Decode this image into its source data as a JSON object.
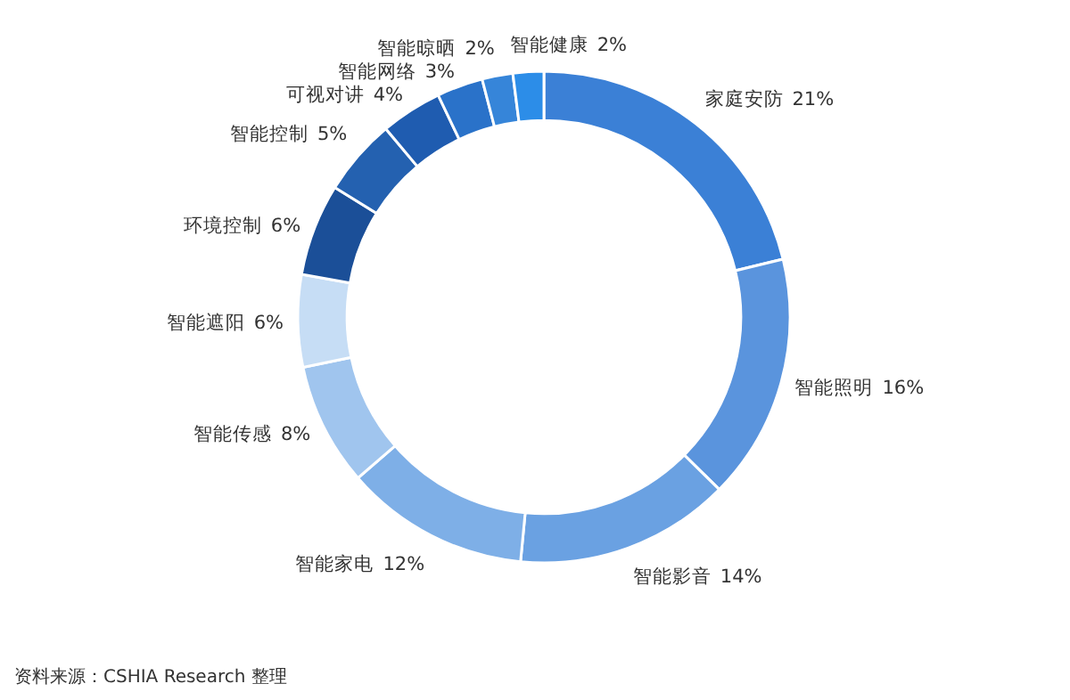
{
  "chart_data": {
    "type": "donut",
    "categories": [
      "家庭安防",
      "智能照明",
      "智能影音",
      "智能家电",
      "智能传感",
      "智能遮阳",
      "环境控制",
      "智能控制",
      "可视对讲",
      "智能网络",
      "智能晾晒",
      "智能健康"
    ],
    "values": [
      21,
      16,
      14,
      12,
      8,
      6,
      6,
      5,
      4,
      3,
      2,
      2
    ],
    "colors": [
      "#3b80d6",
      "#5a94dd",
      "#6aa1e2",
      "#7eafe7",
      "#a0c5ee",
      "#c6ddf5",
      "#1b4f98",
      "#2461b0",
      "#1f5cb0",
      "#2a72c9",
      "#3685d9",
      "#2c8de8"
    ],
    "value_labels": [
      "21%",
      "16%",
      "14%",
      "12%",
      "8%",
      "6%",
      "6%",
      "5%",
      "4%",
      "3%",
      "2%",
      "2%"
    ],
    "annotations": [
      "资料来源：CSHIA Research 整理"
    ]
  }
}
